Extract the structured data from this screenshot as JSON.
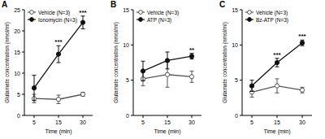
{
  "chart_data": [
    {
      "type": "line",
      "title": "A",
      "x_label": "Time (min)",
      "y_label": "Glutamate concentration (nmol/ml)",
      "categories": [
        "5",
        "15",
        "30"
      ],
      "ylim": [
        0,
        25
      ],
      "yticks": [
        0,
        5,
        10,
        15,
        20,
        25
      ],
      "legend": "upper left",
      "series": [
        {
          "name": "Vehicle (N=3)",
          "color": "#555555",
          "marker": "open-circle",
          "values": [
            4,
            3.8,
            5
          ],
          "error": [
            1,
            1,
            0.5
          ]
        },
        {
          "name": "Ionomycin (N=3)",
          "color": "#111111",
          "marker": "filled-circle",
          "values": [
            6.5,
            14.5,
            22
          ],
          "error": [
            3,
            2,
            1.5
          ]
        }
      ],
      "annotations": [
        {
          "x": "15",
          "text": "***"
        },
        {
          "x": "30",
          "text": "***"
        }
      ]
    },
    {
      "type": "line",
      "title": "B",
      "x_label": "Time (min)",
      "y_label": "Glutamate concentration (nmol/ml)",
      "categories": [
        "5",
        "15",
        "30"
      ],
      "ylim": [
        0,
        15
      ],
      "yticks": [
        0,
        5,
        10,
        15
      ],
      "legend": "upper left",
      "series": [
        {
          "name": "Vehicle (N=3)",
          "color": "#555555",
          "marker": "open-circle",
          "values": [
            5.2,
            5.8,
            5.5
          ],
          "error": [
            1,
            1.8,
            0.8
          ]
        },
        {
          "name": "ATP (N=3)",
          "color": "#111111",
          "marker": "filled-circle",
          "values": [
            6.3,
            7.8,
            8.4
          ],
          "error": [
            1.4,
            1.2,
            0.4
          ]
        }
      ],
      "annotations": [
        {
          "x": "30",
          "text": "**"
        }
      ]
    },
    {
      "type": "line",
      "title": "C",
      "x_label": "Time (min)",
      "y_label": "Glutamate concentration (nmol/ml)",
      "categories": [
        "5",
        "15",
        "30"
      ],
      "ylim": [
        0,
        15
      ],
      "yticks": [
        0,
        5,
        10,
        15
      ],
      "legend": "upper left",
      "series": [
        {
          "name": "Vehicle (N=3)",
          "color": "#555555",
          "marker": "open-circle",
          "values": [
            3.3,
            4.2,
            3.6
          ],
          "error": [
            0.7,
            1,
            0.4
          ]
        },
        {
          "name": "Bz-ATP (N=3)",
          "color": "#111111",
          "marker": "filled-circle",
          "values": [
            4.2,
            7.5,
            10.3
          ],
          "error": [
            0.8,
            0.6,
            0.4
          ]
        }
      ],
      "annotations": [
        {
          "x": "15",
          "text": "***"
        },
        {
          "x": "30",
          "text": "***"
        }
      ]
    }
  ]
}
